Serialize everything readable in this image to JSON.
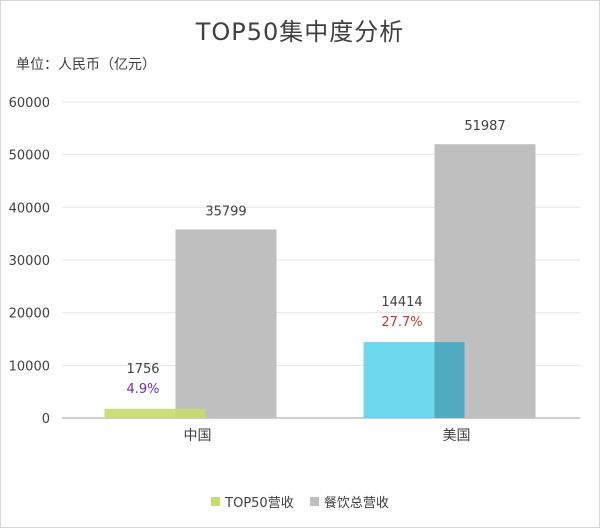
{
  "chart_data": {
    "type": "bar",
    "title": "TOP50集中度分析",
    "unit_label": "单位：人民币（亿元）",
    "categories": [
      "中国",
      "美国"
    ],
    "series": [
      {
        "name": "TOP50营收",
        "values": [
          1756,
          14414
        ],
        "colors": [
          "#c5dd6e",
          "#5bd4ec"
        ]
      },
      {
        "name": "餐饮总营收",
        "values": [
          35799,
          51987
        ],
        "color": "#bfbfbf"
      }
    ],
    "annotations": [
      {
        "category": "中国",
        "text": "4.9%",
        "color": "#7030a0"
      },
      {
        "category": "美国",
        "text": "27.7%",
        "color": "#c0392b"
      }
    ],
    "ylim": [
      0,
      60000
    ],
    "yticks": [
      0,
      10000,
      20000,
      30000,
      40000,
      50000,
      60000
    ],
    "grid": true,
    "legend_position": "bottom"
  }
}
